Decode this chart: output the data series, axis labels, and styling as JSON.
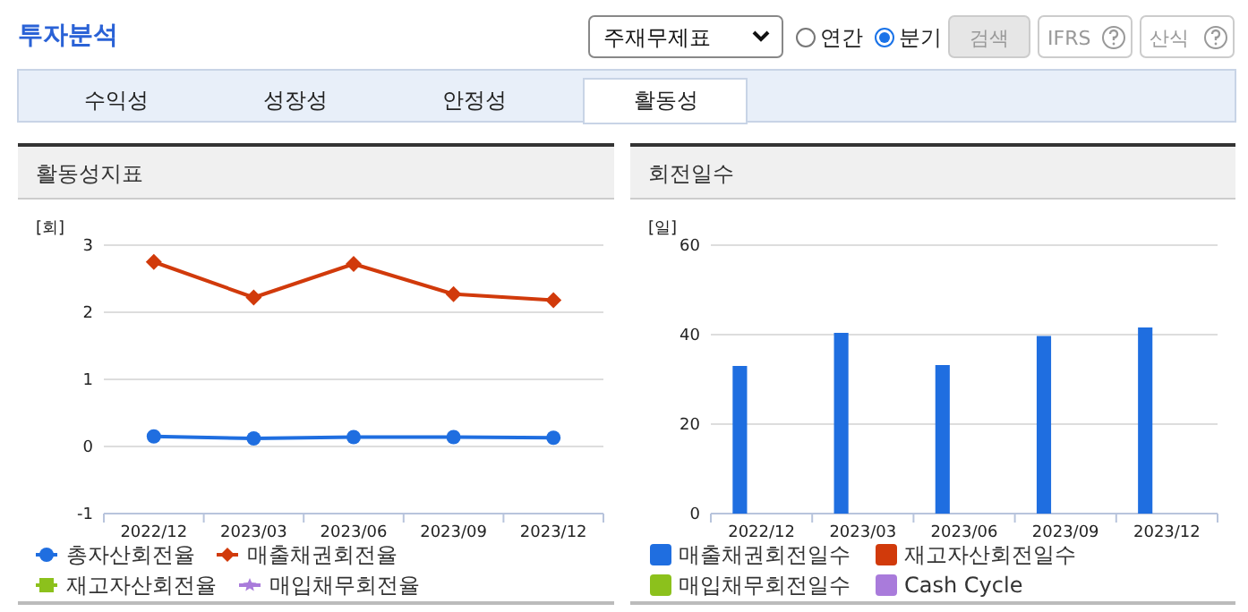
{
  "chart_data": [
    {
      "type": "line",
      "title": "활동성지표",
      "ylabel": "[회]",
      "categories": [
        "2022/12",
        "2023/03",
        "2023/06",
        "2023/09",
        "2023/12"
      ],
      "ylim": [
        -1,
        3
      ],
      "yticks": [
        -1,
        0,
        1,
        2,
        3
      ],
      "grid": "y",
      "legend": "bottom",
      "annotations": [
        "투자분석",
        "주재무제표",
        "연간",
        "분기",
        "검색",
        "IFRS",
        "산식",
        "수익성",
        "성장성",
        "안정성",
        "활동성"
      ],
      "series": [
        {
          "name": "총자산회전율",
          "color": "#1f6ee0",
          "marker": "circle",
          "values": [
            0.15,
            0.12,
            0.14,
            0.14,
            0.13
          ]
        },
        {
          "name": "매출채권회전율",
          "color": "#d13a0b",
          "marker": "diamond",
          "values": [
            2.75,
            2.22,
            2.72,
            2.27,
            2.18
          ]
        },
        {
          "name": "재고자산회전율",
          "color": "#8cc11c",
          "marker": "square",
          "values": [
            null,
            null,
            null,
            null,
            null
          ]
        },
        {
          "name": "매입채무회전율",
          "color": "#a97bdb",
          "marker": "star",
          "values": [
            null,
            null,
            null,
            null,
            null
          ]
        }
      ]
    },
    {
      "type": "bar",
      "title": "회전일수",
      "ylabel": "[일]",
      "categories": [
        "2022/12",
        "2023/03",
        "2023/06",
        "2023/09",
        "2023/12"
      ],
      "ylim": [
        0,
        60
      ],
      "yticks": [
        0,
        20,
        40,
        60
      ],
      "grid": "y",
      "legend": "bottom",
      "series": [
        {
          "name": "매출채권회전일수",
          "color": "#1f6ee0",
          "values": [
            33,
            40.4,
            33.2,
            39.7,
            41.6
          ]
        },
        {
          "name": "재고자산회전일수",
          "color": "#d13a0b",
          "values": [
            null,
            null,
            null,
            null,
            null
          ]
        },
        {
          "name": "매입채무회전일수",
          "color": "#8cc11c",
          "values": [
            null,
            null,
            null,
            null,
            null
          ]
        },
        {
          "name": "Cash Cycle",
          "color": "#a97bdb",
          "values": [
            null,
            null,
            null,
            null,
            null
          ]
        }
      ]
    }
  ]
}
